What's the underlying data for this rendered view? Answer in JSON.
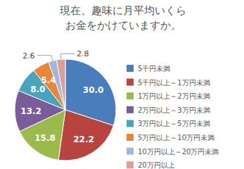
{
  "chart_data": {
    "type": "pie",
    "title": "現在、趣味に月平均いくら\nお金をかけていますか。",
    "categories": [
      "5千円未満",
      "5千円以上～1万円未満",
      "1万円以上～2万円未満",
      "2万円以上～3万円未満",
      "3万円以上～5万円未満",
      "5万円以上～10万円未満",
      "10万円以上～20万円未満",
      "20万円以上"
    ],
    "values": [
      30.0,
      22.2,
      15.8,
      13.2,
      8.0,
      5.4,
      2.6,
      2.8
    ],
    "value_labels": [
      "30.0",
      "22.2",
      "15.8",
      "13.2",
      "8.0",
      "5.4",
      "2.6",
      "2.8"
    ],
    "colors": [
      "#4a7dbb",
      "#b8443f",
      "#9aba4c",
      "#7b5c9b",
      "#48a3bd",
      "#e8873b",
      "#9fb7da",
      "#dc9d9b"
    ],
    "data_labels": true,
    "legend": "right"
  }
}
